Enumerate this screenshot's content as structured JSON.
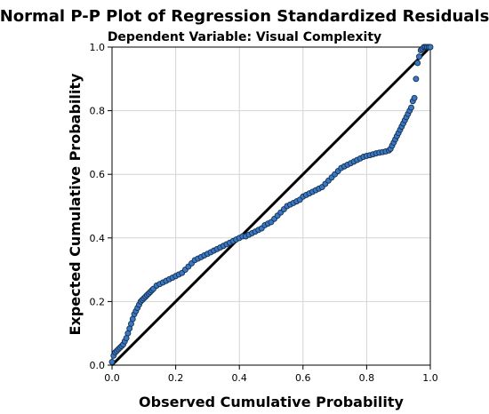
{
  "chart_data": {
    "type": "scatter",
    "title": "Normal P-P Plot of Regression Standardized Residuals",
    "subtitle": "Dependent Variable: Visual Complexity",
    "xlabel": "Observed Cumulative Probability",
    "ylabel": "Expected Cumulative Probability",
    "xlim": [
      0,
      1
    ],
    "ylim": [
      0,
      1
    ],
    "x_ticks": [
      "0.0",
      "0.2",
      "0.4",
      "0.6",
      "0.8",
      "1.0"
    ],
    "y_ticks": [
      "0.0",
      "0.2",
      "0.4",
      "0.6",
      "0.8",
      "1.0"
    ],
    "grid": true,
    "reference_line": [
      [
        0,
        0
      ],
      [
        1,
        1
      ]
    ],
    "marker_color": "#3a78c4",
    "line_color": "#000000",
    "points": [
      [
        0.0,
        0.01
      ],
      [
        0.005,
        0.03
      ],
      [
        0.01,
        0.04
      ],
      [
        0.015,
        0.045
      ],
      [
        0.02,
        0.05
      ],
      [
        0.025,
        0.055
      ],
      [
        0.03,
        0.06
      ],
      [
        0.035,
        0.065
      ],
      [
        0.04,
        0.075
      ],
      [
        0.045,
        0.085
      ],
      [
        0.05,
        0.1
      ],
      [
        0.055,
        0.115
      ],
      [
        0.06,
        0.13
      ],
      [
        0.065,
        0.145
      ],
      [
        0.07,
        0.16
      ],
      [
        0.075,
        0.17
      ],
      [
        0.08,
        0.18
      ],
      [
        0.085,
        0.19
      ],
      [
        0.09,
        0.2
      ],
      [
        0.095,
        0.205
      ],
      [
        0.1,
        0.21
      ],
      [
        0.105,
        0.215
      ],
      [
        0.11,
        0.22
      ],
      [
        0.115,
        0.225
      ],
      [
        0.12,
        0.23
      ],
      [
        0.125,
        0.235
      ],
      [
        0.13,
        0.24
      ],
      [
        0.14,
        0.25
      ],
      [
        0.15,
        0.255
      ],
      [
        0.16,
        0.26
      ],
      [
        0.17,
        0.265
      ],
      [
        0.18,
        0.27
      ],
      [
        0.19,
        0.275
      ],
      [
        0.2,
        0.28
      ],
      [
        0.21,
        0.285
      ],
      [
        0.22,
        0.29
      ],
      [
        0.23,
        0.3
      ],
      [
        0.24,
        0.31
      ],
      [
        0.25,
        0.32
      ],
      [
        0.26,
        0.33
      ],
      [
        0.27,
        0.335
      ],
      [
        0.28,
        0.34
      ],
      [
        0.29,
        0.345
      ],
      [
        0.3,
        0.35
      ],
      [
        0.31,
        0.355
      ],
      [
        0.32,
        0.36
      ],
      [
        0.33,
        0.365
      ],
      [
        0.34,
        0.37
      ],
      [
        0.35,
        0.375
      ],
      [
        0.36,
        0.38
      ],
      [
        0.37,
        0.385
      ],
      [
        0.38,
        0.39
      ],
      [
        0.39,
        0.395
      ],
      [
        0.4,
        0.4
      ],
      [
        0.41,
        0.405
      ],
      [
        0.42,
        0.405
      ],
      [
        0.43,
        0.41
      ],
      [
        0.44,
        0.415
      ],
      [
        0.45,
        0.42
      ],
      [
        0.46,
        0.425
      ],
      [
        0.47,
        0.43
      ],
      [
        0.48,
        0.44
      ],
      [
        0.49,
        0.445
      ],
      [
        0.5,
        0.45
      ],
      [
        0.51,
        0.46
      ],
      [
        0.52,
        0.47
      ],
      [
        0.53,
        0.48
      ],
      [
        0.54,
        0.49
      ],
      [
        0.55,
        0.5
      ],
      [
        0.56,
        0.505
      ],
      [
        0.57,
        0.51
      ],
      [
        0.58,
        0.515
      ],
      [
        0.59,
        0.52
      ],
      [
        0.6,
        0.53
      ],
      [
        0.61,
        0.535
      ],
      [
        0.62,
        0.54
      ],
      [
        0.63,
        0.545
      ],
      [
        0.64,
        0.55
      ],
      [
        0.65,
        0.555
      ],
      [
        0.66,
        0.56
      ],
      [
        0.67,
        0.57
      ],
      [
        0.68,
        0.58
      ],
      [
        0.69,
        0.59
      ],
      [
        0.7,
        0.6
      ],
      [
        0.71,
        0.61
      ],
      [
        0.72,
        0.62
      ],
      [
        0.73,
        0.625
      ],
      [
        0.74,
        0.63
      ],
      [
        0.75,
        0.635
      ],
      [
        0.76,
        0.64
      ],
      [
        0.77,
        0.645
      ],
      [
        0.78,
        0.65
      ],
      [
        0.79,
        0.655
      ],
      [
        0.8,
        0.658
      ],
      [
        0.81,
        0.66
      ],
      [
        0.82,
        0.663
      ],
      [
        0.83,
        0.666
      ],
      [
        0.84,
        0.668
      ],
      [
        0.85,
        0.67
      ],
      [
        0.86,
        0.672
      ],
      [
        0.87,
        0.675
      ],
      [
        0.875,
        0.68
      ],
      [
        0.88,
        0.69
      ],
      [
        0.885,
        0.7
      ],
      [
        0.89,
        0.71
      ],
      [
        0.895,
        0.72
      ],
      [
        0.9,
        0.73
      ],
      [
        0.905,
        0.74
      ],
      [
        0.91,
        0.75
      ],
      [
        0.915,
        0.76
      ],
      [
        0.92,
        0.77
      ],
      [
        0.925,
        0.78
      ],
      [
        0.93,
        0.79
      ],
      [
        0.935,
        0.8
      ],
      [
        0.94,
        0.81
      ],
      [
        0.945,
        0.83
      ],
      [
        0.95,
        0.84
      ],
      [
        0.955,
        0.9
      ],
      [
        0.96,
        0.95
      ],
      [
        0.965,
        0.97
      ],
      [
        0.97,
        0.99
      ],
      [
        0.975,
        0.995
      ],
      [
        0.98,
        1.0
      ],
      [
        0.985,
        1.0
      ],
      [
        0.99,
        1.0
      ],
      [
        0.995,
        1.0
      ],
      [
        1.0,
        1.0
      ]
    ]
  }
}
